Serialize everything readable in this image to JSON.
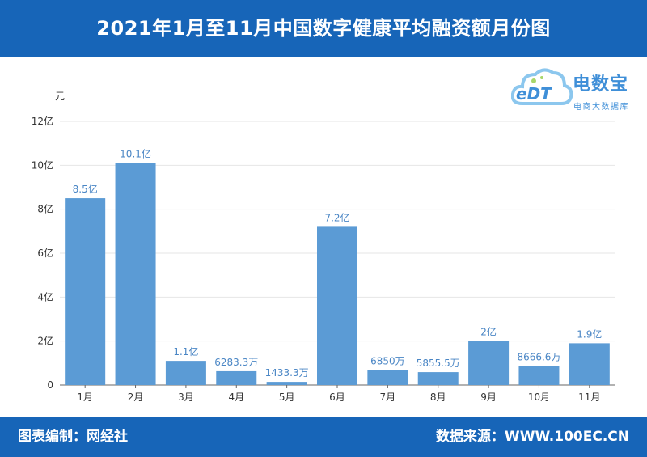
{
  "header": {
    "title": "2021年1月至11月中国数字健康平均融资额月份图"
  },
  "footer": {
    "left_text": "图表编制：网经社",
    "right_text": "数据来源：WWW.100EC.CN"
  },
  "logo": {
    "name": "电数宝",
    "subtitle": "电商大数据库",
    "mark_text": "eDT"
  },
  "colors": {
    "brand_blue": "#1765b8",
    "bar": "#5b9bd5",
    "label": "#4a86c5"
  },
  "chart_data": {
    "type": "bar",
    "title": "2021年1月至11月中国数字健康平均融资额月份图",
    "ylabel": "元",
    "xlabel": "",
    "categories": [
      "1月",
      "2月",
      "3月",
      "4月",
      "5月",
      "6月",
      "7月",
      "8月",
      "9月",
      "10月",
      "11月"
    ],
    "values": [
      850000000,
      1010000000,
      110000000,
      62833000,
      14333000,
      720000000,
      68500000,
      58555000,
      200000000,
      86666000,
      190000000
    ],
    "data_labels": [
      "8.5亿",
      "10.1亿",
      "1.1亿",
      "6283.3万",
      "1433.3万",
      "7.2亿",
      "6850万",
      "5855.5万",
      "2亿",
      "8666.6万",
      "1.9亿"
    ],
    "ylim": [
      0,
      1200000000
    ],
    "yticks": [
      0,
      200000000,
      400000000,
      600000000,
      800000000,
      1000000000,
      1200000000
    ],
    "ytick_labels": [
      "0",
      "2亿",
      "4亿",
      "6亿",
      "8亿",
      "10亿",
      "12亿"
    ],
    "grid": true,
    "legend": "none"
  }
}
